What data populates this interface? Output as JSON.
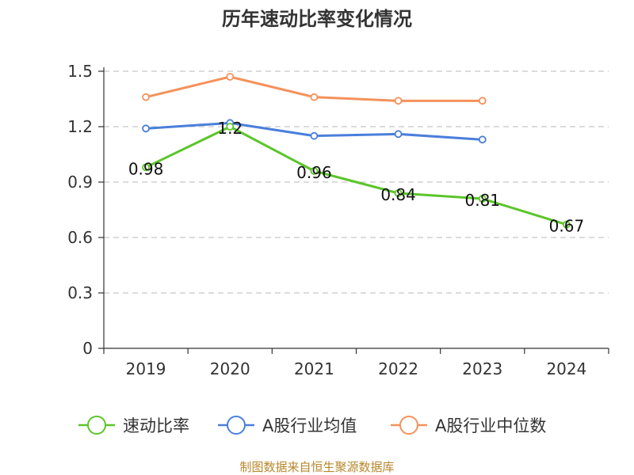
{
  "chart_data": {
    "type": "line",
    "title": "历年速动比率变化情况",
    "categories": [
      "2019",
      "2020",
      "2021",
      "2022",
      "2023",
      "2024"
    ],
    "ylim": [
      0,
      1.5
    ],
    "yticks": [
      "0",
      "0.3",
      "0.6",
      "0.9",
      "1.2",
      "1.5"
    ],
    "grid": true,
    "legend_position": "bottom",
    "series": [
      {
        "name": "速动比率",
        "color": "#5cc52a",
        "values": [
          0.98,
          1.2,
          0.96,
          0.84,
          0.81,
          0.67
        ],
        "labels": [
          "0.98",
          "1.2",
          "0.96",
          "0.84",
          "0.81",
          "0.67"
        ]
      },
      {
        "name": "A股行业均值",
        "color": "#4a7fdb",
        "values": [
          1.19,
          1.22,
          1.15,
          1.16,
          1.13,
          null
        ]
      },
      {
        "name": "A股行业中位数",
        "color": "#f5915a",
        "values": [
          1.36,
          1.47,
          1.36,
          1.34,
          1.34,
          null
        ]
      }
    ]
  },
  "source": "制图数据来自恒生聚源数据库"
}
